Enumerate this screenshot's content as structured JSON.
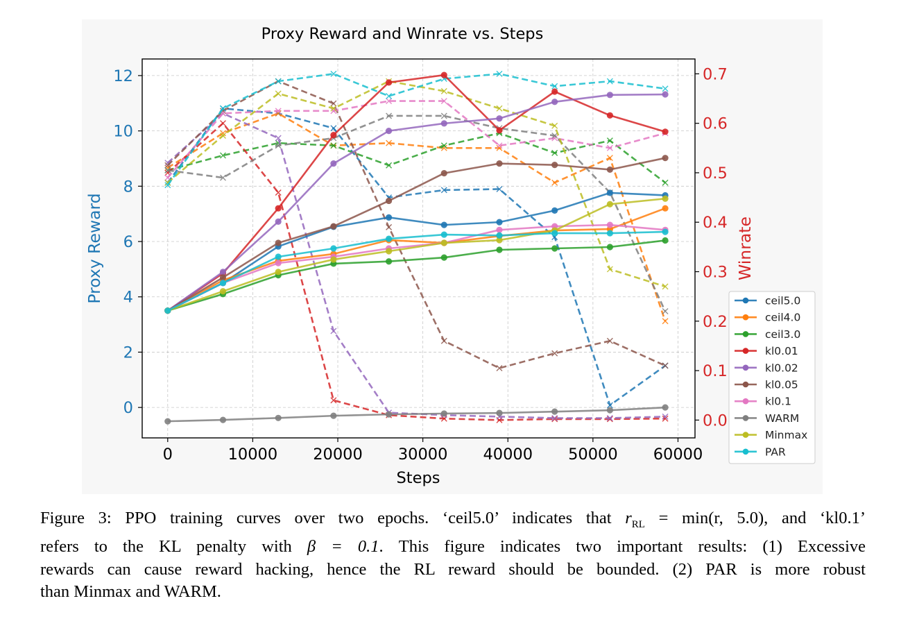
{
  "chart_data": {
    "type": "line",
    "title": "Proxy Reward and Winrate vs. Steps",
    "xlabel": "Steps",
    "ylabel_left": "Proxy Reward",
    "ylabel_right": "Winrate",
    "xlim": [
      -3000,
      62000
    ],
    "ylim_left": [
      -1.1,
      12.6
    ],
    "ylim_right": [
      -0.036,
      0.73
    ],
    "x_ticks": [
      0,
      10000,
      20000,
      30000,
      40000,
      50000,
      60000
    ],
    "y_left_ticks": [
      0,
      2,
      4,
      6,
      8,
      10,
      12
    ],
    "y_right_ticks": [
      0.0,
      0.1,
      0.2,
      0.3,
      0.4,
      0.5,
      0.6,
      0.7
    ],
    "grid": true,
    "legend_position": "lower-right-outside",
    "left_axis_color": "#1f77b4",
    "right_axis_color": "#d62728",
    "line_styles": {
      "proxy_reward": "solid with circle markers",
      "winrate": "dashed with x markers"
    },
    "x": [
      0,
      6500,
      13000,
      19500,
      26000,
      32500,
      39000,
      45500,
      52000,
      58500
    ],
    "series": [
      {
        "name": "ceil5.0",
        "color": "#1f77b4",
        "proxy_reward": [
          3.5,
          4.5,
          5.82,
          6.53,
          6.87,
          6.6,
          6.7,
          7.12,
          7.76,
          7.67
        ],
        "winrate": [
          0.48,
          0.63,
          0.62,
          0.59,
          0.45,
          0.465,
          0.467,
          0.37,
          0.03,
          0.11
        ]
      },
      {
        "name": "ceil4.0",
        "color": "#ff7f0e",
        "proxy_reward": [
          3.5,
          4.6,
          5.3,
          5.55,
          6.05,
          5.95,
          6.2,
          6.4,
          6.45,
          7.2
        ],
        "winrate": [
          0.51,
          0.58,
          0.62,
          0.555,
          0.56,
          0.55,
          0.55,
          0.48,
          0.53,
          0.2
        ]
      },
      {
        "name": "ceil3.0",
        "color": "#2ca02c",
        "proxy_reward": [
          3.5,
          4.1,
          4.78,
          5.2,
          5.28,
          5.42,
          5.7,
          5.75,
          5.8,
          6.04
        ],
        "winrate": [
          0.505,
          0.535,
          0.56,
          0.555,
          0.515,
          0.555,
          0.58,
          0.54,
          0.565,
          0.48
        ]
      },
      {
        "name": "kl0.01",
        "color": "#d62728",
        "proxy_reward": [
          3.5,
          4.85,
          7.2,
          9.85,
          11.75,
          12.02,
          10.02,
          11.42,
          10.56,
          9.97
        ],
        "winrate": [
          0.5,
          0.6,
          0.46,
          0.04,
          0.01,
          0.003,
          0.0,
          0.002,
          0.002,
          0.003
        ]
      },
      {
        "name": "kl0.02",
        "color": "#9467bd",
        "proxy_reward": [
          3.5,
          4.9,
          6.72,
          8.82,
          10.0,
          10.27,
          10.45,
          11.05,
          11.3,
          11.32
        ],
        "winrate": [
          0.52,
          0.62,
          0.57,
          0.18,
          0.015,
          0.01,
          0.007,
          0.004,
          0.004,
          0.007
        ]
      },
      {
        "name": "kl0.05",
        "color": "#8c564b",
        "proxy_reward": [
          3.5,
          4.7,
          5.95,
          6.55,
          7.47,
          8.47,
          8.82,
          8.77,
          8.6,
          9.02
        ],
        "winrate": [
          0.515,
          0.625,
          0.685,
          0.64,
          0.39,
          0.16,
          0.105,
          0.135,
          0.16,
          0.11
        ]
      },
      {
        "name": "kl0.1",
        "color": "#e377c2",
        "proxy_reward": [
          3.5,
          4.5,
          5.22,
          5.45,
          5.75,
          5.95,
          6.42,
          6.55,
          6.6,
          6.42
        ],
        "winrate": [
          0.49,
          0.62,
          0.625,
          0.625,
          0.645,
          0.645,
          0.555,
          0.57,
          0.55,
          0.58
        ]
      },
      {
        "name": "WARM",
        "color": "#7f7f7f",
        "proxy_reward": [
          -0.5,
          -0.45,
          -0.38,
          -0.3,
          -0.25,
          -0.22,
          -0.2,
          -0.15,
          -0.1,
          0.0
        ],
        "winrate": [
          0.505,
          0.49,
          0.555,
          0.57,
          0.615,
          0.615,
          0.59,
          0.575,
          0.46,
          0.22
        ]
      },
      {
        "name": "Minmax",
        "color": "#bcbd22",
        "proxy_reward": [
          3.5,
          4.2,
          4.9,
          5.35,
          5.65,
          5.95,
          6.05,
          6.4,
          7.35,
          7.55
        ],
        "winrate": [
          0.48,
          0.575,
          0.66,
          0.63,
          0.685,
          0.665,
          0.63,
          0.595,
          0.305,
          0.27
        ]
      },
      {
        "name": "PAR",
        "color": "#17becf",
        "proxy_reward": [
          3.5,
          4.5,
          5.45,
          5.75,
          6.1,
          6.25,
          6.22,
          6.3,
          6.3,
          6.35
        ],
        "winrate": [
          0.475,
          0.63,
          0.685,
          0.7,
          0.655,
          0.69,
          0.7,
          0.675,
          0.685,
          0.67
        ]
      }
    ]
  },
  "caption": {
    "line1": "Figure 3: PPO training curves over two epochs. ‘ceil5.0’ indicates that",
    "math1_lhs": "r",
    "math1_sub": "RL",
    "math1_rhs": " = min(r, 5.0)",
    "line1_end": ", and ‘kl0.1’",
    "line2a": "refers to the KL penalty with",
    "math2": "β = 0.1",
    "line2b": ". This figure indicates two important results: (1) Excessive",
    "line3": "rewards can cause reward hacking, hence the RL reward should be bounded. (2) PAR is more robust",
    "line4": "than Minmax and WARM."
  }
}
